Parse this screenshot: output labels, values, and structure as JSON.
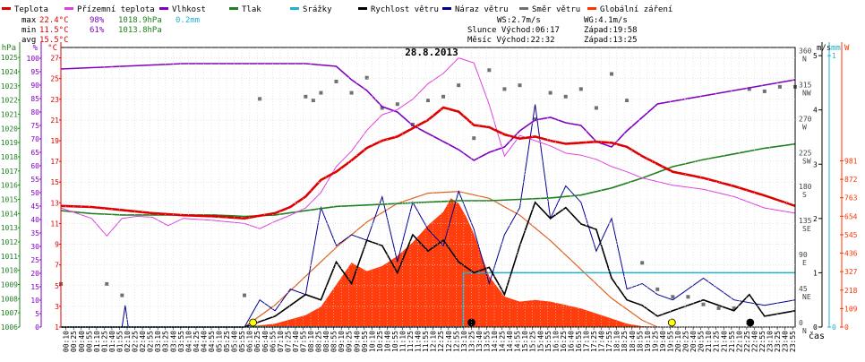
{
  "chart_data": {
    "type": "line",
    "title": "28.8.2013",
    "xlabel": "čas",
    "legend": [
      {
        "name": "Teplota",
        "color": "#e00000"
      },
      {
        "name": "Přízemní teplota",
        "color": "#e040e0"
      },
      {
        "name": "Vlhkost",
        "color": "#8000c0"
      },
      {
        "name": "Tlak",
        "color": "#208020"
      },
      {
        "name": "Srážky",
        "color": "#20b0d0"
      },
      {
        "name": "Rychlost větru",
        "color": "#000000"
      },
      {
        "name": "Náraz větru",
        "color": "#000090"
      },
      {
        "name": "Směr větru",
        "color": "#707070"
      },
      {
        "name": "Globální záření",
        "color": "#ff3300"
      }
    ],
    "stats": {
      "max": {
        "label": "max",
        "temp": "22.4°C",
        "hum": "98%",
        "press": "1018.9hPa",
        "rain": "0.2mm"
      },
      "min": {
        "label": "min",
        "temp": "11.5°C",
        "hum": "61%",
        "press": "1013.8hPa"
      },
      "avg": {
        "label": "avg",
        "temp": "15.5°C"
      }
    },
    "info": {
      "ws": "WS:2.7m/s",
      "wg": "WG:4.1m/s",
      "sun": "Slunce Východ:06:17",
      "sunset": "Západ:19:58",
      "moon": "Měsíc  Východ:22:32",
      "moonset": "Západ:13:25"
    },
    "axes_left": [
      {
        "unit": "hPa",
        "color": "#208020",
        "ticks": [
          "1006",
          "1007",
          "1008",
          "1009",
          "1010",
          "1011",
          "1012",
          "1013",
          "1014",
          "1015",
          "1016",
          "1017",
          "1018",
          "1019",
          "1020",
          "1021",
          "1022",
          "1023",
          "1024",
          "1025"
        ]
      },
      {
        "unit": "%",
        "color": "#8000c0",
        "ticks": [
          "0",
          "5",
          "10",
          "15",
          "20",
          "25",
          "30",
          "35",
          "40",
          "45",
          "50",
          "55",
          "60",
          "65",
          "70",
          "75",
          "80",
          "85",
          "90",
          "95",
          "100"
        ]
      },
      {
        "unit": "°C",
        "color": "#e00000",
        "ticks": [
          "1",
          "3",
          "5",
          "7",
          "9",
          "11",
          "13",
          "15",
          "17",
          "19",
          "21",
          "23",
          "25",
          "27"
        ]
      }
    ],
    "axes_right": [
      {
        "unit": "m/s",
        "color": "#000000",
        "ticks": [
          "0",
          "1",
          "2",
          "3",
          "4",
          "5"
        ]
      },
      {
        "unit": "mm",
        "color": "#20b0d0",
        "ticks": [
          "0",
          "1"
        ]
      },
      {
        "unit": "W",
        "color": "#ff3300",
        "ticks": [
          "0",
          "109",
          "218",
          "327",
          "436",
          "545",
          "654",
          "763",
          "872",
          "981"
        ]
      },
      {
        "unit": "dir",
        "color": "#444444",
        "ticks": [
          "0",
          "45",
          "90",
          "135",
          "180",
          "225",
          "270",
          "315",
          "360"
        ],
        "labels": [
          "N",
          "NE",
          "E",
          "SE",
          "S",
          "SW",
          "W",
          "NW",
          "N"
        ]
      }
    ],
    "x_ticks": [
      "00:10",
      "00:25",
      "00:40",
      "00:55",
      "01:10",
      "01:25",
      "01:40",
      "01:55",
      "02:10",
      "02:25",
      "02:40",
      "02:55",
      "03:10",
      "03:25",
      "03:40",
      "03:55",
      "04:10",
      "04:25",
      "04:40",
      "04:55",
      "05:10",
      "05:25",
      "05:40",
      "05:55",
      "06:10",
      "06:25",
      "06:40",
      "06:55",
      "07:10",
      "07:25",
      "07:40",
      "07:55",
      "08:10",
      "08:25",
      "08:40",
      "08:55",
      "09:10",
      "09:25",
      "09:40",
      "09:55",
      "10:10",
      "10:25",
      "10:40",
      "10:55",
      "11:10",
      "11:25",
      "11:40",
      "11:55",
      "12:10",
      "12:25",
      "12:40",
      "12:55",
      "13:10",
      "13:25",
      "13:40",
      "13:55",
      "14:10",
      "14:25",
      "14:40",
      "14:55",
      "15:10",
      "15:25",
      "15:40",
      "15:55",
      "16:10",
      "16:25",
      "16:40",
      "16:55",
      "17:10",
      "17:25",
      "17:40",
      "17:55",
      "18:10",
      "18:25",
      "18:40",
      "18:55",
      "19:10",
      "19:25",
      "19:40",
      "19:55",
      "20:10",
      "20:25",
      "20:40",
      "20:55",
      "21:10",
      "21:25",
      "21:40",
      "21:55",
      "22:10",
      "22:25",
      "22:40",
      "22:55",
      "23:10",
      "23:25",
      "23:40",
      "23:55"
    ],
    "series": {
      "temperature": {
        "unit": "°C",
        "x": [
          0,
          1,
          2,
          3,
          4,
          5,
          6,
          7,
          7.5,
          8,
          8.5,
          9,
          9.5,
          10,
          10.5,
          11,
          11.5,
          12,
          12.5,
          13,
          13.5,
          14,
          14.5,
          15,
          15.5,
          16,
          16.5,
          17,
          17.5,
          18,
          18.5,
          19,
          20,
          21,
          22,
          23,
          24
        ],
        "y": [
          12.7,
          12.6,
          12.3,
          12.0,
          11.8,
          11.7,
          11.5,
          12.0,
          12.6,
          13.6,
          15.2,
          16.0,
          17.1,
          18.3,
          19.0,
          19.4,
          20.2,
          21.0,
          22.2,
          21.8,
          20.5,
          20.3,
          19.6,
          19.2,
          19.4,
          19.0,
          18.7,
          18.8,
          18.9,
          18.8,
          18.4,
          17.5,
          16.0,
          15.4,
          14.6,
          13.7,
          12.7
        ]
      },
      "ground_temperature": {
        "unit": "°C",
        "x": [
          0,
          0.5,
          1,
          1.5,
          2,
          2.5,
          3,
          3.5,
          4,
          5,
          6,
          6.5,
          7,
          7.5,
          8,
          8.5,
          9,
          9.5,
          10,
          10.5,
          11,
          11.5,
          12,
          12.5,
          13,
          13.5,
          14,
          14.5,
          15,
          15.5,
          16,
          16.5,
          17,
          17.5,
          18,
          18.5,
          19,
          20,
          21,
          22,
          23,
          24
        ],
        "y": [
          12.5,
          12.0,
          11.5,
          9.8,
          11.5,
          11.7,
          11.6,
          10.8,
          11.5,
          11.3,
          11.0,
          10.5,
          11.2,
          11.8,
          12.5,
          14.0,
          16.5,
          18.0,
          20.0,
          21.5,
          22.0,
          23.0,
          24.5,
          25.5,
          27.0,
          26.5,
          22.5,
          17.5,
          19.5,
          19.0,
          18.5,
          17.8,
          17.6,
          17.2,
          16.5,
          16.0,
          15.4,
          14.7,
          14.3,
          13.6,
          12.5,
          12.0
        ]
      },
      "humidity": {
        "unit": "%",
        "x": [
          0,
          2,
          4,
          6,
          7,
          8,
          9,
          9.5,
          10,
          10.5,
          11,
          11.5,
          12,
          12.5,
          13,
          13.5,
          14,
          14.5,
          15,
          15.5,
          16,
          16.5,
          17,
          17.5,
          18,
          18.5,
          19,
          19.5,
          20,
          21,
          22,
          23,
          24
        ],
        "y": [
          96,
          97,
          98,
          98,
          98,
          98,
          97,
          92,
          88,
          82,
          80,
          75,
          72,
          69,
          66,
          62,
          65,
          67,
          73,
          77,
          78,
          76,
          75,
          69,
          67,
          73,
          78,
          83,
          84,
          86,
          88,
          90,
          92
        ]
      },
      "pressure": {
        "unit": "hPa",
        "x": [
          0,
          1,
          2,
          3,
          4,
          5,
          6,
          7,
          8,
          9,
          10,
          11,
          12,
          13,
          14,
          15,
          16,
          17,
          18,
          19,
          20,
          21,
          22,
          23,
          24
        ],
        "y": [
          1014.2,
          1014.0,
          1013.9,
          1013.9,
          1013.9,
          1013.9,
          1013.8,
          1013.9,
          1014.2,
          1014.5,
          1014.6,
          1014.7,
          1014.8,
          1014.9,
          1014.9,
          1015.0,
          1015.1,
          1015.3,
          1015.8,
          1016.5,
          1017.3,
          1017.8,
          1018.2,
          1018.6,
          1018.9
        ]
      },
      "radiation": {
        "unit": "W",
        "x": [
          0,
          6,
          7,
          8,
          8.5,
          9,
          9.5,
          10,
          10.5,
          11,
          11.5,
          12,
          12.5,
          12.75,
          13,
          13.25,
          13.5,
          14,
          14.5,
          15,
          15.5,
          16,
          16.5,
          17,
          17.5,
          18,
          18.5,
          19,
          20,
          24
        ],
        "y": [
          0,
          0,
          20,
          70,
          120,
          250,
          380,
          330,
          360,
          420,
          500,
          600,
          680,
          760,
          730,
          650,
          550,
          300,
          180,
          150,
          160,
          150,
          130,
          110,
          80,
          50,
          20,
          5,
          0,
          0
        ]
      },
      "clear_sky_radiation": {
        "unit": "W",
        "x": [
          6,
          7,
          8,
          9,
          10,
          11,
          12,
          13,
          14,
          15,
          16,
          17,
          18,
          19,
          19.5
        ],
        "y": [
          0,
          130,
          300,
          470,
          620,
          730,
          790,
          800,
          760,
          660,
          510,
          340,
          170,
          40,
          0
        ]
      },
      "wind_speed": {
        "unit": "m/s",
        "x": [
          0,
          6,
          7,
          7.5,
          8,
          8.5,
          9,
          9.5,
          10,
          10.5,
          11,
          11.5,
          12,
          12.5,
          13,
          13.5,
          14,
          14.5,
          15,
          15.5,
          16,
          16.5,
          17,
          17.5,
          18,
          18.5,
          19,
          19.5,
          20,
          21,
          22,
          22.5,
          23,
          24
        ],
        "y": [
          0,
          0,
          0.2,
          0.4,
          0.6,
          0.5,
          1.2,
          0.8,
          1.6,
          1.5,
          1.0,
          1.7,
          1.4,
          1.6,
          1.2,
          1.0,
          1.1,
          0.6,
          1.5,
          2.3,
          2.0,
          2.2,
          1.9,
          1.8,
          0.9,
          0.5,
          0.4,
          0.2,
          0.3,
          0.5,
          0.3,
          0.6,
          0.2,
          0.3
        ]
      },
      "wind_gust": {
        "unit": "m/s",
        "x": [
          0,
          2,
          2.1,
          2.2,
          6,
          6.5,
          7,
          7.5,
          8,
          8.5,
          9,
          9.5,
          10,
          10.5,
          11,
          11.5,
          12,
          12.5,
          13,
          13.5,
          14,
          14.5,
          15,
          15.5,
          16,
          16.5,
          17,
          17.5,
          18,
          18.5,
          19,
          19.5,
          20,
          21,
          22,
          23,
          24
        ],
        "y": [
          0,
          0,
          0.4,
          0,
          0,
          0.5,
          0.3,
          0.7,
          0.6,
          2.2,
          1.5,
          1.7,
          1.6,
          2.4,
          1.2,
          2.3,
          1.8,
          1.5,
          2.5,
          1.8,
          0.8,
          1.7,
          2.2,
          4.1,
          2.0,
          2.6,
          2.3,
          1.4,
          2.0,
          0.7,
          0.8,
          0.6,
          0.5,
          0.9,
          0.5,
          0.4,
          0.5
        ]
      },
      "rain_total": {
        "unit": "mm",
        "x": [
          0,
          13.15,
          13.16,
          24
        ],
        "y": [
          0,
          0,
          0.2,
          0.2
        ]
      },
      "wind_direction": {
        "unit": "°",
        "x": [
          0,
          1.5,
          2,
          6,
          6.5,
          8,
          8.25,
          8.5,
          9,
          9.5,
          10,
          10.5,
          11,
          11.5,
          12,
          12.5,
          13,
          13.5,
          14,
          14.5,
          15,
          15.5,
          16,
          16.5,
          17,
          17.5,
          18,
          18.5,
          19,
          19.5,
          20,
          20.5,
          21,
          21.5,
          22,
          22.5,
          23,
          23.5,
          24
        ],
        "y": [
          57,
          57,
          42,
          42,
          302,
          305,
          300,
          310,
          325,
          310,
          330,
          290,
          295,
          268,
          300,
          305,
          320,
          250,
          340,
          315,
          320,
          275,
          310,
          305,
          315,
          290,
          335,
          300,
          85,
          50,
          40,
          40,
          30,
          25,
          25,
          315,
          312,
          318,
          318
        ]
      }
    },
    "markers": [
      {
        "name": "sunrise",
        "x": 6.28,
        "color": "#ffff00"
      },
      {
        "name": "moonset",
        "x": 13.42,
        "color": "#000000"
      },
      {
        "name": "sunset",
        "x": 19.97,
        "color": "#ffff00"
      },
      {
        "name": "moonrise",
        "x": 22.53,
        "color": "#000000"
      }
    ]
  }
}
